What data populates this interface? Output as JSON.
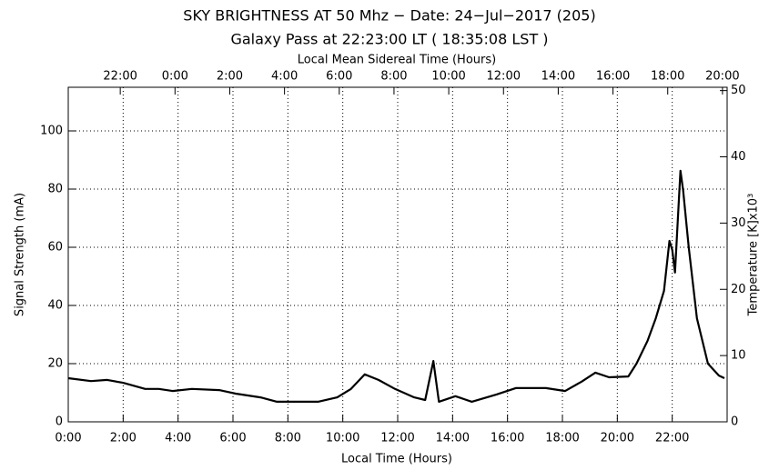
{
  "chart_data": {
    "type": "line",
    "title": "SKY BRIGHTNESS AT 50 Mhz − Date: 24−Jul−2017 (205)",
    "subtitle": "Galaxy Pass at 22:23:00 LT  ( 18:35:08 LST )",
    "x_label": "Local Time (Hours)",
    "x2_label": "Local Mean Sidereal Time (Hours)",
    "y_label": "Signal Strength (mA)",
    "y2_label": "Temperature [K]x10³",
    "xlim": [
      0,
      24
    ],
    "xticks": [
      {
        "value": 0,
        "label": "0:00"
      },
      {
        "value": 2,
        "label": "2:00"
      },
      {
        "value": 4,
        "label": "4:00"
      },
      {
        "value": 6,
        "label": "6:00"
      },
      {
        "value": 8,
        "label": "8:00"
      },
      {
        "value": 10,
        "label": "10:00"
      },
      {
        "value": 12,
        "label": "12:00"
      },
      {
        "value": 14,
        "label": "14:00"
      },
      {
        "value": 16,
        "label": "16:00"
      },
      {
        "value": 18,
        "label": "18:00"
      },
      {
        "value": 20,
        "label": "20:00"
      },
      {
        "value": 22,
        "label": "22:00"
      }
    ],
    "x2lim": [
      20.1,
      44.17
    ],
    "x2ticks": [
      {
        "value": 22,
        "label": "22:00"
      },
      {
        "value": 24,
        "label": "0:00"
      },
      {
        "value": 26,
        "label": "2:00"
      },
      {
        "value": 28,
        "label": "4:00"
      },
      {
        "value": 30,
        "label": "6:00"
      },
      {
        "value": 32,
        "label": "8:00"
      },
      {
        "value": 34,
        "label": "10:00"
      },
      {
        "value": 36,
        "label": "12:00"
      },
      {
        "value": 38,
        "label": "14:00"
      },
      {
        "value": 40,
        "label": "16:00"
      },
      {
        "value": 42,
        "label": "18:00"
      },
      {
        "value": 44,
        "label": "20:00"
      }
    ],
    "ylim": [
      0,
      115
    ],
    "yticks": [
      0,
      20,
      40,
      60,
      80,
      100
    ],
    "y2lim": [
      0,
      50.5
    ],
    "y2ticks": [
      0,
      10,
      20,
      30,
      40,
      50
    ],
    "grid": true,
    "series": [
      {
        "name": "Signal",
        "color": "#000000",
        "x": [
          0,
          0.83,
          1.42,
          2,
          2.8,
          3.3,
          3.8,
          4.5,
          5.5,
          6.1,
          7.0,
          7.6,
          8.6,
          9.1,
          9.8,
          10.3,
          10.8,
          11.3,
          11.9,
          12.6,
          13.0,
          13.3,
          13.5,
          14.1,
          14.7,
          15.6,
          16.3,
          17.4,
          18.1,
          18.7,
          19.2,
          19.7,
          20.4,
          20.7,
          21.1,
          21.4,
          21.7,
          21.9,
          22.0,
          22.1,
          22.3,
          22.4,
          22.6,
          22.9,
          23.3,
          23.7,
          23.9
        ],
        "values": [
          15,
          14,
          14.4,
          13.4,
          11.3,
          11.3,
          10.6,
          11.3,
          10.9,
          9.7,
          8.4,
          6.9,
          6.9,
          6.9,
          8.4,
          11.3,
          16.3,
          14.4,
          11.3,
          8.4,
          7.5,
          20.9,
          6.9,
          8.8,
          6.9,
          9.4,
          11.6,
          11.6,
          10.6,
          13.8,
          16.9,
          15.3,
          15.6,
          20,
          27.8,
          35.6,
          45,
          62.2,
          59.1,
          51.3,
          86.3,
          79.4,
          60,
          35.6,
          20,
          15.9,
          15
        ]
      }
    ]
  }
}
